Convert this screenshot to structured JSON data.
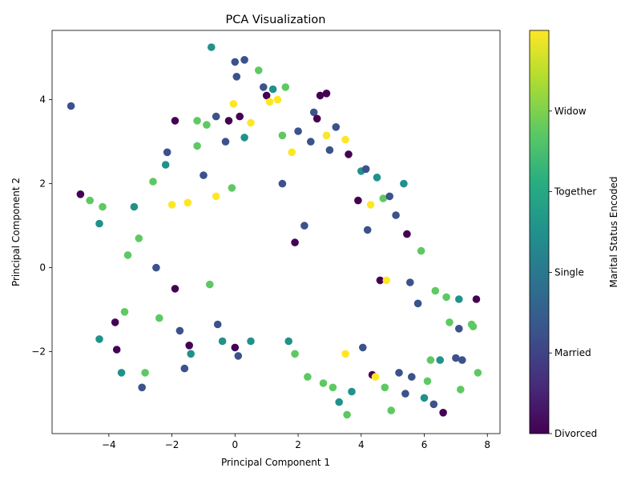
{
  "chart_data": {
    "type": "scatter",
    "title": "PCA Visualization",
    "xlabel": "Principal Component 1",
    "ylabel": "Principal Component 2",
    "xlim": [
      -5.8,
      8.4
    ],
    "ylim": [
      -3.95,
      5.65
    ],
    "x_ticks": [
      -4,
      -2,
      0,
      2,
      4,
      6,
      8
    ],
    "y_ticks": [
      -2,
      0,
      2,
      4
    ],
    "grid": false,
    "colormap": "viridis",
    "colorbar": {
      "label": "Marital Status Encoded",
      "range": [
        0,
        5
      ],
      "ticks": [
        {
          "value": 0,
          "label": "Divorced"
        },
        {
          "value": 1,
          "label": "Married"
        },
        {
          "value": 2,
          "label": "Single"
        },
        {
          "value": 3,
          "label": "Together"
        },
        {
          "value": 4,
          "label": "Widow"
        }
      ]
    },
    "categories": [
      "Divorced",
      "Married",
      "Single",
      "Together",
      "Widow"
    ],
    "category_colors": [
      "#440154",
      "#3b528b",
      "#21918c",
      "#5ec962",
      "#fde725"
    ],
    "points": [
      {
        "x": -5.2,
        "y": 3.85,
        "c": 1
      },
      {
        "x": -4.9,
        "y": 1.75,
        "c": 0
      },
      {
        "x": -4.6,
        "y": 1.6,
        "c": 3
      },
      {
        "x": -4.2,
        "y": 1.45,
        "c": 3
      },
      {
        "x": -4.3,
        "y": 1.05,
        "c": 2
      },
      {
        "x": -4.3,
        "y": -1.7,
        "c": 2
      },
      {
        "x": -3.6,
        "y": -2.5,
        "c": 2
      },
      {
        "x": -3.75,
        "y": -1.95,
        "c": 0
      },
      {
        "x": -3.8,
        "y": -1.3,
        "c": 0
      },
      {
        "x": -3.5,
        "y": -1.05,
        "c": 3
      },
      {
        "x": -3.4,
        "y": 0.3,
        "c": 3
      },
      {
        "x": -3.2,
        "y": 1.45,
        "c": 2
      },
      {
        "x": -3.05,
        "y": 0.7,
        "c": 3
      },
      {
        "x": -2.95,
        "y": -2.85,
        "c": 1
      },
      {
        "x": -2.85,
        "y": -2.5,
        "c": 3
      },
      {
        "x": -2.6,
        "y": 2.05,
        "c": 3
      },
      {
        "x": -2.5,
        "y": 0.0,
        "c": 1
      },
      {
        "x": -2.4,
        "y": -1.2,
        "c": 3
      },
      {
        "x": -2.2,
        "y": 2.45,
        "c": 2
      },
      {
        "x": -2.15,
        "y": 2.75,
        "c": 1
      },
      {
        "x": -2.0,
        "y": 1.5,
        "c": 4
      },
      {
        "x": -1.9,
        "y": 3.5,
        "c": 0
      },
      {
        "x": -1.9,
        "y": -0.5,
        "c": 0
      },
      {
        "x": -1.75,
        "y": -1.5,
        "c": 1
      },
      {
        "x": -1.6,
        "y": -2.4,
        "c": 1
      },
      {
        "x": -1.5,
        "y": 1.55,
        "c": 4
      },
      {
        "x": -1.45,
        "y": -1.85,
        "c": 0
      },
      {
        "x": -1.4,
        "y": -2.05,
        "c": 2
      },
      {
        "x": -1.2,
        "y": 2.9,
        "c": 3
      },
      {
        "x": -1.2,
        "y": 3.5,
        "c": 3
      },
      {
        "x": -1.0,
        "y": 2.2,
        "c": 1
      },
      {
        "x": -0.9,
        "y": 3.4,
        "c": 3
      },
      {
        "x": -0.8,
        "y": -0.4,
        "c": 3
      },
      {
        "x": -0.75,
        "y": 5.25,
        "c": 2
      },
      {
        "x": -0.6,
        "y": 3.6,
        "c": 1
      },
      {
        "x": -0.6,
        "y": 1.7,
        "c": 4
      },
      {
        "x": -0.55,
        "y": -1.35,
        "c": 1
      },
      {
        "x": -0.4,
        "y": -1.75,
        "c": 2
      },
      {
        "x": -0.3,
        "y": 3.0,
        "c": 1
      },
      {
        "x": -0.2,
        "y": 3.5,
        "c": 0
      },
      {
        "x": -0.1,
        "y": 1.9,
        "c": 3
      },
      {
        "x": -0.05,
        "y": 3.9,
        "c": 4
      },
      {
        "x": 0.0,
        "y": 4.9,
        "c": 1
      },
      {
        "x": 0.0,
        "y": -1.9,
        "c": 0
      },
      {
        "x": 0.05,
        "y": 4.55,
        "c": 1
      },
      {
        "x": 0.1,
        "y": -2.1,
        "c": 1
      },
      {
        "x": 0.15,
        "y": 3.6,
        "c": 0
      },
      {
        "x": 0.3,
        "y": 4.95,
        "c": 1
      },
      {
        "x": 0.3,
        "y": 3.1,
        "c": 2
      },
      {
        "x": 0.5,
        "y": 3.45,
        "c": 4
      },
      {
        "x": 0.5,
        "y": -1.75,
        "c": 2
      },
      {
        "x": 0.75,
        "y": 4.7,
        "c": 3
      },
      {
        "x": 0.9,
        "y": 4.3,
        "c": 1
      },
      {
        "x": 1.0,
        "y": 4.1,
        "c": 0
      },
      {
        "x": 1.1,
        "y": 3.95,
        "c": 4
      },
      {
        "x": 1.2,
        "y": 4.25,
        "c": 2
      },
      {
        "x": 1.35,
        "y": 4.0,
        "c": 4
      },
      {
        "x": 1.6,
        "y": 4.3,
        "c": 3
      },
      {
        "x": 1.5,
        "y": 3.15,
        "c": 3
      },
      {
        "x": 1.5,
        "y": 2.0,
        "c": 1
      },
      {
        "x": 1.7,
        "y": -1.75,
        "c": 2
      },
      {
        "x": 1.8,
        "y": 2.75,
        "c": 4
      },
      {
        "x": 1.9,
        "y": 0.6,
        "c": 0
      },
      {
        "x": 1.9,
        "y": -2.05,
        "c": 3
      },
      {
        "x": 2.0,
        "y": 3.25,
        "c": 1
      },
      {
        "x": 2.2,
        "y": 1.0,
        "c": 1
      },
      {
        "x": 2.3,
        "y": -2.6,
        "c": 3
      },
      {
        "x": 2.4,
        "y": 3.0,
        "c": 1
      },
      {
        "x": 2.5,
        "y": 3.7,
        "c": 1
      },
      {
        "x": 2.6,
        "y": 3.55,
        "c": 0
      },
      {
        "x": 2.7,
        "y": 4.1,
        "c": 0
      },
      {
        "x": 2.8,
        "y": -2.75,
        "c": 3
      },
      {
        "x": 2.9,
        "y": 4.15,
        "c": 0
      },
      {
        "x": 2.9,
        "y": 3.15,
        "c": 4
      },
      {
        "x": 3.0,
        "y": 2.8,
        "c": 1
      },
      {
        "x": 3.1,
        "y": -2.85,
        "c": 3
      },
      {
        "x": 3.2,
        "y": 3.35,
        "c": 1
      },
      {
        "x": 3.3,
        "y": -3.2,
        "c": 2
      },
      {
        "x": 3.5,
        "y": 3.05,
        "c": 4
      },
      {
        "x": 3.5,
        "y": -2.05,
        "c": 4
      },
      {
        "x": 3.55,
        "y": -3.5,
        "c": 3
      },
      {
        "x": 3.6,
        "y": 2.7,
        "c": 0
      },
      {
        "x": 3.7,
        "y": -2.95,
        "c": 2
      },
      {
        "x": 3.9,
        "y": 1.6,
        "c": 0
      },
      {
        "x": 4.0,
        "y": 2.3,
        "c": 2
      },
      {
        "x": 4.05,
        "y": -1.9,
        "c": 1
      },
      {
        "x": 4.15,
        "y": 2.35,
        "c": 1
      },
      {
        "x": 4.2,
        "y": 0.9,
        "c": 1
      },
      {
        "x": 4.3,
        "y": 1.5,
        "c": 4
      },
      {
        "x": 4.35,
        "y": -2.55,
        "c": 0
      },
      {
        "x": 4.45,
        "y": -2.6,
        "c": 4
      },
      {
        "x": 4.5,
        "y": 2.15,
        "c": 2
      },
      {
        "x": 4.6,
        "y": -0.3,
        "c": 0
      },
      {
        "x": 4.7,
        "y": 1.65,
        "c": 3
      },
      {
        "x": 4.75,
        "y": -2.85,
        "c": 3
      },
      {
        "x": 4.8,
        "y": -0.3,
        "c": 4
      },
      {
        "x": 4.9,
        "y": 1.7,
        "c": 1
      },
      {
        "x": 4.95,
        "y": -3.4,
        "c": 3
      },
      {
        "x": 5.1,
        "y": 1.25,
        "c": 1
      },
      {
        "x": 5.2,
        "y": -2.5,
        "c": 1
      },
      {
        "x": 5.35,
        "y": 2.0,
        "c": 2
      },
      {
        "x": 5.4,
        "y": -3.0,
        "c": 1
      },
      {
        "x": 5.45,
        "y": 0.8,
        "c": 0
      },
      {
        "x": 5.55,
        "y": -0.35,
        "c": 1
      },
      {
        "x": 5.6,
        "y": -2.6,
        "c": 1
      },
      {
        "x": 5.8,
        "y": -0.85,
        "c": 1
      },
      {
        "x": 5.9,
        "y": 0.4,
        "c": 3
      },
      {
        "x": 6.0,
        "y": -3.1,
        "c": 2
      },
      {
        "x": 6.1,
        "y": -2.7,
        "c": 3
      },
      {
        "x": 6.2,
        "y": -2.2,
        "c": 3
      },
      {
        "x": 6.3,
        "y": -3.25,
        "c": 1
      },
      {
        "x": 6.35,
        "y": -0.55,
        "c": 3
      },
      {
        "x": 6.5,
        "y": -2.2,
        "c": 2
      },
      {
        "x": 6.6,
        "y": -3.45,
        "c": 0
      },
      {
        "x": 6.7,
        "y": -0.7,
        "c": 3
      },
      {
        "x": 6.8,
        "y": -1.3,
        "c": 3
      },
      {
        "x": 7.0,
        "y": -2.15,
        "c": 1
      },
      {
        "x": 7.1,
        "y": -0.75,
        "c": 2
      },
      {
        "x": 7.1,
        "y": -1.45,
        "c": 1
      },
      {
        "x": 7.15,
        "y": -2.9,
        "c": 3
      },
      {
        "x": 7.2,
        "y": -2.2,
        "c": 1
      },
      {
        "x": 7.5,
        "y": -1.35,
        "c": 3
      },
      {
        "x": 7.55,
        "y": -1.4,
        "c": 3
      },
      {
        "x": 7.65,
        "y": -0.75,
        "c": 0
      },
      {
        "x": 7.7,
        "y": -2.5,
        "c": 3
      }
    ]
  }
}
